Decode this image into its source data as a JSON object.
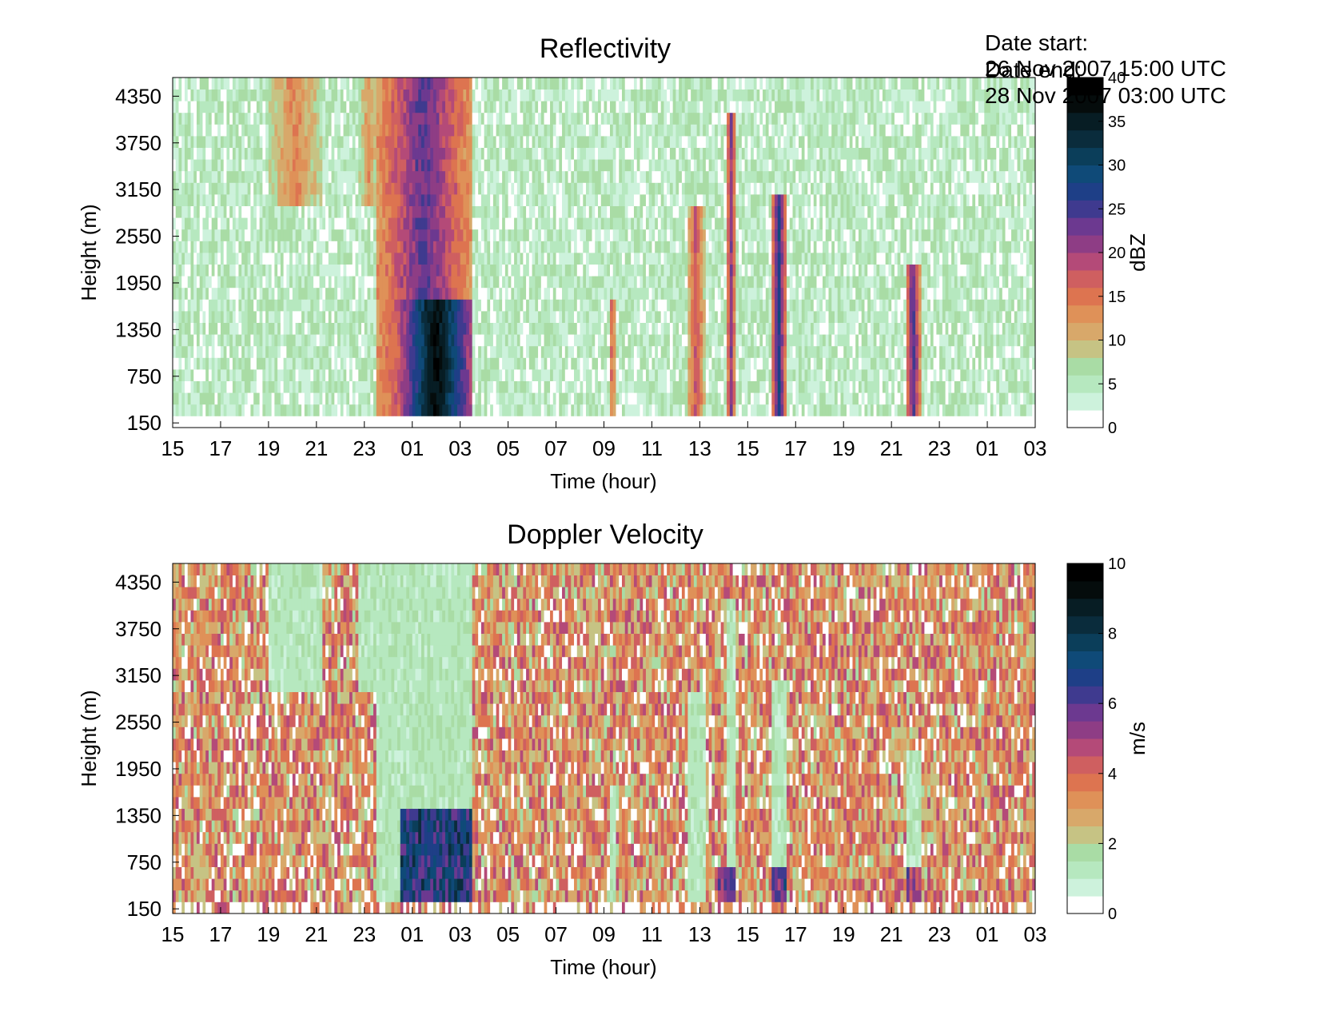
{
  "header": {
    "date_start_label": "Date start:",
    "date_start_value": "26 Nov 2007 15:00 UTC",
    "date_end_label": "Date end:",
    "date_end_value": "28 Nov 2007 03:00 UTC"
  },
  "chart_data": [
    {
      "type": "heatmap",
      "title": "Reflectivity",
      "xlabel": "Time (hour)",
      "ylabel": "Height (m)",
      "x_ticks": [
        "15",
        "17",
        "19",
        "21",
        "23",
        "01",
        "03",
        "05",
        "07",
        "09",
        "11",
        "13",
        "15",
        "17",
        "19",
        "21",
        "23",
        "01",
        "03"
      ],
      "x_range_hours": [
        0,
        36
      ],
      "y_ticks": [
        150,
        750,
        1350,
        1950,
        2550,
        3150,
        3750,
        4350
      ],
      "y_range": [
        90,
        4590
      ],
      "colorbar": {
        "label": "dBZ",
        "range": [
          0,
          40
        ],
        "ticks": [
          0,
          5,
          10,
          15,
          20,
          25,
          30,
          35,
          40
        ],
        "colors": [
          "#ffffff",
          "#cdf2dc",
          "#b6e8bf",
          "#a9dca5",
          "#c6c384",
          "#d8a86a",
          "#df9158",
          "#dd7450",
          "#cf5f60",
          "#b44a78",
          "#8e3d85",
          "#6c3990",
          "#3f3a8f",
          "#1e3f87",
          "#0f4a78",
          "#0b3e5a",
          "#0a2c3c",
          "#071d24",
          "#050c0c",
          "#000000"
        ]
      },
      "background_level_dbz": 5,
      "echoes": [
        {
          "t_start": 4.0,
          "t_end": 6.2,
          "h_bottom": 2900,
          "h_top": 4590,
          "peak_dbz": 14
        },
        {
          "t_start": 7.8,
          "t_end": 8.6,
          "h_bottom": 3000,
          "h_top": 4590,
          "peak_dbz": 13
        },
        {
          "t_start": 8.5,
          "t_end": 12.5,
          "h_bottom": 150,
          "h_top": 4590,
          "peak_dbz": 24
        },
        {
          "t_start": 9.5,
          "t_end": 12.5,
          "h_bottom": 150,
          "h_top": 1700,
          "peak_dbz": 38
        },
        {
          "t_start": 18.2,
          "t_end": 18.5,
          "h_bottom": 150,
          "h_top": 1800,
          "peak_dbz": 17
        },
        {
          "t_start": 21.5,
          "t_end": 22.2,
          "h_bottom": 150,
          "h_top": 3000,
          "peak_dbz": 18
        },
        {
          "t_start": 23.1,
          "t_end": 23.5,
          "h_bottom": 150,
          "h_top": 4200,
          "peak_dbz": 22
        },
        {
          "t_start": 25.0,
          "t_end": 25.6,
          "h_bottom": 150,
          "h_top": 3100,
          "peak_dbz": 27
        },
        {
          "t_start": 30.6,
          "t_end": 31.2,
          "h_bottom": 150,
          "h_top": 2200,
          "peak_dbz": 25
        }
      ]
    },
    {
      "type": "heatmap",
      "title": "Doppler Velocity",
      "xlabel": "Time (hour)",
      "ylabel": "Height (m)",
      "x_ticks": [
        "15",
        "17",
        "19",
        "21",
        "23",
        "01",
        "03",
        "05",
        "07",
        "09",
        "11",
        "13",
        "15",
        "17",
        "19",
        "21",
        "23",
        "01",
        "03"
      ],
      "x_range_hours": [
        0,
        36
      ],
      "y_ticks": [
        150,
        750,
        1350,
        1950,
        2550,
        3150,
        3750,
        4350
      ],
      "y_range": [
        90,
        4590
      ],
      "colorbar": {
        "label": "m/s",
        "range": [
          0,
          10
        ],
        "ticks": [
          0,
          2,
          4,
          6,
          8,
          10
        ],
        "colors": [
          "#ffffff",
          "#cdf2dc",
          "#b6e8bf",
          "#a9dca5",
          "#c6c384",
          "#d8a86a",
          "#df9158",
          "#dd7450",
          "#cf5f60",
          "#b44a78",
          "#8e3d85",
          "#6c3990",
          "#3f3a8f",
          "#1e3f87",
          "#0f4a78",
          "#0b3e5a",
          "#0a2c3c",
          "#071d24",
          "#050c0c",
          "#000000"
        ]
      },
      "background_level_ms": 3.3,
      "in_cloud_level_ms": 1.3,
      "strong_fall": [
        {
          "t_start": 9.5,
          "t_end": 12.5,
          "h_bottom": 150,
          "h_top": 1500,
          "peak_ms": 7.5
        },
        {
          "t_start": 22.7,
          "t_end": 23.5,
          "h_bottom": 150,
          "h_top": 700,
          "peak_ms": 6
        },
        {
          "t_start": 25.0,
          "t_end": 25.6,
          "h_bottom": 150,
          "h_top": 700,
          "peak_ms": 6.5
        },
        {
          "t_start": 30.6,
          "t_end": 31.2,
          "h_bottom": 150,
          "h_top": 700,
          "peak_ms": 5.5
        }
      ]
    }
  ]
}
